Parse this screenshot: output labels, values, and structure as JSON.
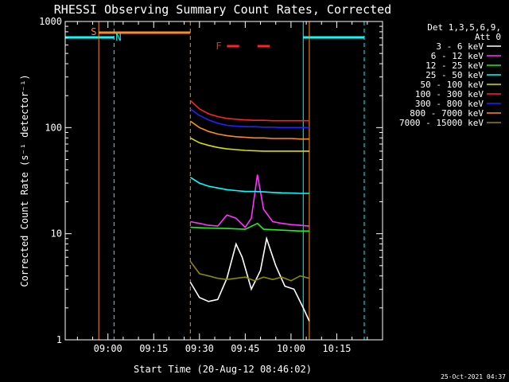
{
  "chart_data": {
    "type": "line",
    "title": "RHESSI Observing Summary Count Rates, Corrected",
    "xlabel": "Start Time (20-Aug-12 08:46:02)",
    "ylabel": "Corrected Count Rate (s⁻¹ detector⁻¹)",
    "y_scale": "log",
    "ylim": [
      1,
      1000
    ],
    "xlim": [
      "08:46",
      "10:30"
    ],
    "x_tick_labels": [
      "09:00",
      "09:15",
      "09:30",
      "09:45",
      "10:00",
      "10:15"
    ],
    "y_tick_labels": [
      "1",
      "10",
      "100",
      "1000"
    ],
    "legend": {
      "placement": "right",
      "header_line1": "Det 1,3,5,6,9,",
      "header_line2": "Att 0",
      "entries": [
        {
          "label": "3 - 6 keV",
          "color": "#ffffff"
        },
        {
          "label": "6 - 12 keV",
          "color": "#ff33ff"
        },
        {
          "label": "12 - 25 keV",
          "color": "#22ee22"
        },
        {
          "label": "25 - 50 keV",
          "color": "#00ffff"
        },
        {
          "label": "50 - 100 keV",
          "color": "#dddd00"
        },
        {
          "label": "100 - 300 keV",
          "color": "#ff2222"
        },
        {
          "label": "300 - 800 keV",
          "color": "#2222ff"
        },
        {
          "label": "800 - 7000 keV",
          "color": "#ff8c1a"
        },
        {
          "label": "7000 - 15000 keV",
          "color": "#8b8b00"
        }
      ]
    },
    "annotations": {
      "saa_label": "S",
      "night_label": "N",
      "flare_label": "F",
      "saa": {
        "start": "08:57",
        "end": "09:27"
      },
      "night_1": {
        "start": "08:46",
        "end": "09:02"
      },
      "night_2": {
        "start": "10:04",
        "end": "10:24"
      },
      "flare": [
        {
          "start": "09:39",
          "end": "09:43"
        },
        {
          "start": "09:49",
          "end": "09:53"
        }
      ],
      "data_gap_lines": [
        "08:57",
        "09:02",
        "09:27",
        "10:04",
        "10:06",
        "10:24"
      ]
    },
    "series": [
      {
        "name": "3 - 6 keV",
        "color": "#ffffff",
        "x": [
          "09:27",
          "09:30",
          "09:33",
          "09:36",
          "09:39",
          "09:42",
          "09:44",
          "09:47",
          "09:50",
          "09:52",
          "09:55",
          "09:58",
          "10:01",
          "10:04",
          "10:06"
        ],
        "y": [
          3.5,
          2.5,
          2.3,
          2.4,
          3.8,
          8.0,
          6.0,
          3.0,
          4.5,
          9.0,
          5.0,
          3.2,
          3.0,
          2.0,
          1.5
        ]
      },
      {
        "name": "6 - 12 keV",
        "color": "#ff33ff",
        "x": [
          "09:27",
          "09:30",
          "09:33",
          "09:36",
          "09:39",
          "09:42",
          "09:45",
          "09:47",
          "09:49",
          "09:51",
          "09:54",
          "09:57",
          "10:00",
          "10:03",
          "10:06"
        ],
        "y": [
          13,
          12.5,
          12,
          11.8,
          15,
          14,
          11.5,
          14,
          36,
          17,
          13,
          12.5,
          12.2,
          12,
          11.8
        ]
      },
      {
        "name": "12 - 25 keV",
        "color": "#22ee22",
        "x": [
          "09:27",
          "09:33",
          "09:39",
          "09:45",
          "09:49",
          "09:51",
          "09:57",
          "10:03",
          "10:06"
        ],
        "y": [
          11.5,
          11.3,
          11.2,
          11,
          12.5,
          11,
          10.8,
          10.6,
          10.6
        ]
      },
      {
        "name": "25 - 50 keV",
        "color": "#00ffff",
        "x": [
          "09:27",
          "09:30",
          "09:33",
          "09:36",
          "09:39",
          "09:42",
          "09:45",
          "09:48",
          "09:51",
          "09:54",
          "09:57",
          "10:00",
          "10:03",
          "10:06"
        ],
        "y": [
          34,
          30,
          28,
          27,
          26,
          25.5,
          25,
          25,
          24.8,
          24.5,
          24.3,
          24.2,
          24.0,
          24.0
        ]
      },
      {
        "name": "50 - 100 keV",
        "color": "#dddd00",
        "x": [
          "09:27",
          "09:30",
          "09:33",
          "09:36",
          "09:39",
          "09:42",
          "09:45",
          "09:48",
          "09:51",
          "09:54",
          "09:57",
          "10:00",
          "10:03",
          "10:06"
        ],
        "y": [
          80,
          72,
          68,
          65,
          63,
          62,
          61,
          60.5,
          60,
          60,
          60,
          60,
          60,
          60
        ]
      },
      {
        "name": "100 - 300 keV",
        "color": "#ff2222",
        "x": [
          "09:27",
          "09:30",
          "09:33",
          "09:36",
          "09:39",
          "09:42",
          "09:45",
          "09:48",
          "09:51",
          "09:54",
          "09:57",
          "10:00",
          "10:03",
          "10:06"
        ],
        "y": [
          180,
          150,
          135,
          127,
          122,
          120,
          118,
          117,
          117,
          116,
          116,
          116,
          116,
          116
        ]
      },
      {
        "name": "300 - 800 keV",
        "color": "#2222ff",
        "x": [
          "09:27",
          "09:30",
          "09:33",
          "09:36",
          "09:39",
          "09:42",
          "09:45",
          "09:48",
          "09:51",
          "09:54",
          "09:57",
          "10:00",
          "10:03",
          "10:06"
        ],
        "y": [
          150,
          130,
          118,
          110,
          105,
          103,
          102,
          102,
          101,
          101,
          100,
          100,
          100,
          100
        ]
      },
      {
        "name": "800 - 7000 keV",
        "color": "#ff8c1a",
        "x": [
          "09:27",
          "09:30",
          "09:33",
          "09:36",
          "09:39",
          "09:42",
          "09:45",
          "09:48",
          "09:51",
          "09:54",
          "09:57",
          "10:00",
          "10:03",
          "10:06"
        ],
        "y": [
          115,
          100,
          92,
          87,
          84,
          82,
          81,
          80,
          80,
          79,
          79,
          79,
          78,
          78
        ]
      },
      {
        "name": "7000 - 15000 keV",
        "color": "#8b8b00",
        "x": [
          "09:27",
          "09:30",
          "09:33",
          "09:36",
          "09:39",
          "09:42",
          "09:45",
          "09:48",
          "09:51",
          "09:54",
          "09:57",
          "10:00",
          "10:03",
          "10:06"
        ],
        "y": [
          5.5,
          4.2,
          4.0,
          3.8,
          3.7,
          3.8,
          3.9,
          3.6,
          3.9,
          3.7,
          3.9,
          3.6,
          4.0,
          3.8
        ]
      }
    ]
  },
  "stamp": "25-Oct-2021 04:37"
}
